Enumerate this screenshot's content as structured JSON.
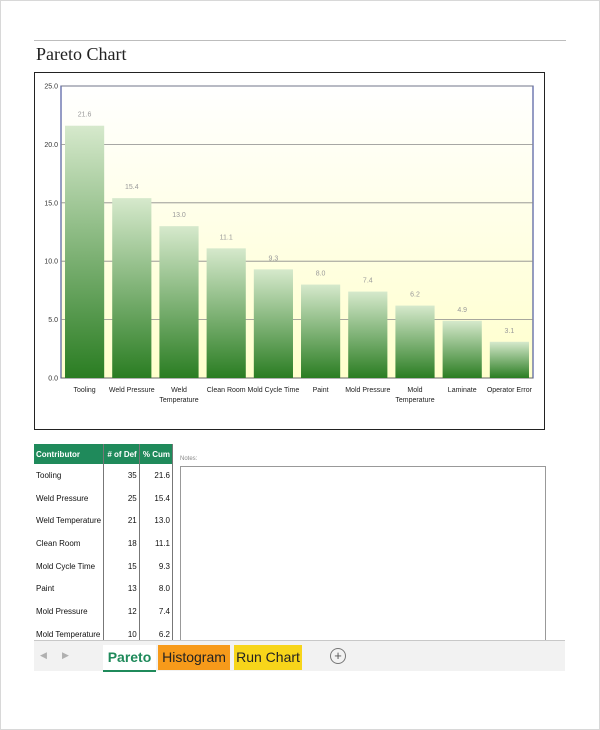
{
  "page": {
    "title": "Pareto Chart"
  },
  "chart_data": {
    "type": "bar",
    "categories": [
      "Tooling",
      "Weld Pressure",
      "Weld Temperature",
      "Clean Room",
      "Mold Cycle Time",
      "Paint",
      "Mold Pressure",
      "Mold Temperature",
      "Laminate",
      "Operator Error"
    ],
    "category_lines": [
      [
        "Tooling"
      ],
      [
        "Weld Pressure"
      ],
      [
        "Weld",
        "Temperature"
      ],
      [
        "Clean Room"
      ],
      [
        "Mold Cycle Time"
      ],
      [
        "Paint"
      ],
      [
        "Mold Pressure"
      ],
      [
        "Mold",
        "Temperature"
      ],
      [
        "Laminate"
      ],
      [
        "Operator Error"
      ]
    ],
    "values": [
      21.6,
      15.4,
      13.0,
      11.1,
      9.3,
      8.0,
      7.4,
      6.2,
      4.9,
      3.1
    ],
    "value_labels": [
      "21.6",
      "15.4",
      "13.0",
      "11.1",
      "9.3",
      "8.0",
      "7.4",
      "6.2",
      "4.9",
      "3.1"
    ],
    "yticks": [
      "0.0",
      "5.0",
      "10.0",
      "15.0",
      "20.0",
      "25.0"
    ],
    "ylim": [
      0,
      25
    ],
    "grid": true,
    "title": "",
    "xlabel": "",
    "ylabel": "",
    "colors": {
      "bar_top": "#d6e9cc",
      "bar_bottom": "#2a7d22",
      "plot_bg_top": "#ffffff",
      "plot_bg_bottom": "#ffffcc",
      "plot_border": "#2b3a8c"
    }
  },
  "table": {
    "headers": [
      "Contributor",
      "# of Def",
      "% Cum"
    ],
    "rows": [
      [
        "Tooling",
        "35",
        "21.6"
      ],
      [
        "Weld Pressure",
        "25",
        "15.4"
      ],
      [
        "Weld Temperature",
        "21",
        "13.0"
      ],
      [
        "Clean Room",
        "18",
        "11.1"
      ],
      [
        "Mold Cycle Time",
        "15",
        "9.3"
      ],
      [
        "Paint",
        "13",
        "8.0"
      ],
      [
        "Mold Pressure",
        "12",
        "7.4"
      ],
      [
        "Mold Temperature",
        "10",
        "6.2"
      ]
    ],
    "header_color": "#1f8a5b"
  },
  "notes": {
    "label": "Notes:"
  },
  "tabs": {
    "items": [
      "Pareto",
      "Histogram",
      "Run Chart"
    ],
    "prev_icon": "chevron-left-icon",
    "next_icon": "chevron-right-icon",
    "add_icon": "plus-circle-icon"
  }
}
